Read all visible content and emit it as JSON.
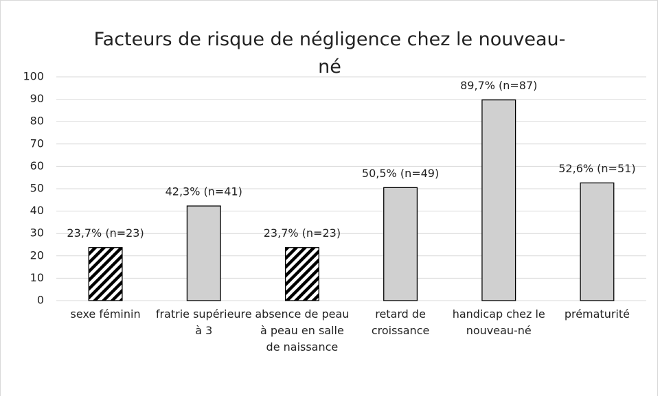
{
  "chart_data": {
    "type": "bar",
    "title": "Facteurs de risque de négligence chez le nouveau-né",
    "categories": [
      "sexe féminin",
      "fratrie supérieure à 3",
      "absence de peau à peau en salle de naissance",
      "retard de croissance",
      "handicap chez le nouveau-né",
      "prématurité"
    ],
    "values": [
      23.7,
      42.3,
      23.7,
      50.5,
      89.7,
      52.6
    ],
    "value_labels": [
      "23,7% (n=23)",
      "42,3% (n=41)",
      "23,7% (n=23)",
      "50,5% (n=49)",
      "89,7% (n=87)",
      "52,6% (n=51)"
    ],
    "color": "#d0d0d0",
    "hatched": [
      true,
      false,
      true,
      false,
      false,
      false
    ],
    "ylim": [
      0,
      100
    ],
    "yticks": [
      0,
      10,
      20,
      30,
      40,
      50,
      60,
      70,
      80,
      90,
      100
    ],
    "grid": true
  }
}
